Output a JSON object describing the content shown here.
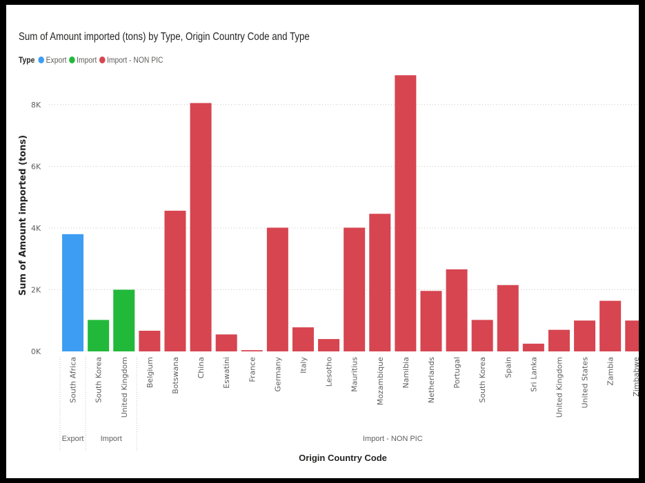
{
  "chart_data": {
    "type": "bar",
    "title": "Sum of Amount imported (tons) by Type, Origin Country Code and Type",
    "xlabel": "Origin Country Code",
    "ylabel": "Sum of Amount imported (tons)",
    "ylim": [
      0,
      9000
    ],
    "y_ticks": [
      {
        "value": 0,
        "label": "0K"
      },
      {
        "value": 2000,
        "label": "2K"
      },
      {
        "value": 4000,
        "label": "4K"
      },
      {
        "value": 6000,
        "label": "6K"
      },
      {
        "value": 8000,
        "label": "8K"
      }
    ],
    "grid": true,
    "legend_title": "Type",
    "legend_placement": "top-left",
    "series": [
      {
        "name": "Export",
        "color": "#3d9df3"
      },
      {
        "name": "Import",
        "color": "#22b93a"
      },
      {
        "name": "Import - NON PIC",
        "color": "#d64550"
      }
    ],
    "groups": [
      {
        "name": "Export",
        "categories": [
          "South Africa"
        ],
        "values": [
          3800
        ]
      },
      {
        "name": "Import",
        "categories": [
          "South Korea",
          "United Kingdom"
        ],
        "values": [
          1020,
          2000
        ]
      },
      {
        "name": "Import - NON PIC",
        "categories": [
          "Belgium",
          "Botswana",
          "China",
          "Eswatini",
          "France",
          "Germany",
          "Italy",
          "Lesotho",
          "Mauritius",
          "Mozambique",
          "Namibia",
          "Netherlands",
          "Portugal",
          "South Korea",
          "Spain",
          "Sri Lanka",
          "United Kingdom",
          "United States",
          "Zambia",
          "Zimbabwe"
        ],
        "values": [
          670,
          4560,
          8050,
          550,
          40,
          4010,
          780,
          400,
          4010,
          4460,
          8950,
          1960,
          2660,
          1020,
          2150,
          250,
          700,
          1000,
          1640,
          1000
        ]
      }
    ]
  }
}
